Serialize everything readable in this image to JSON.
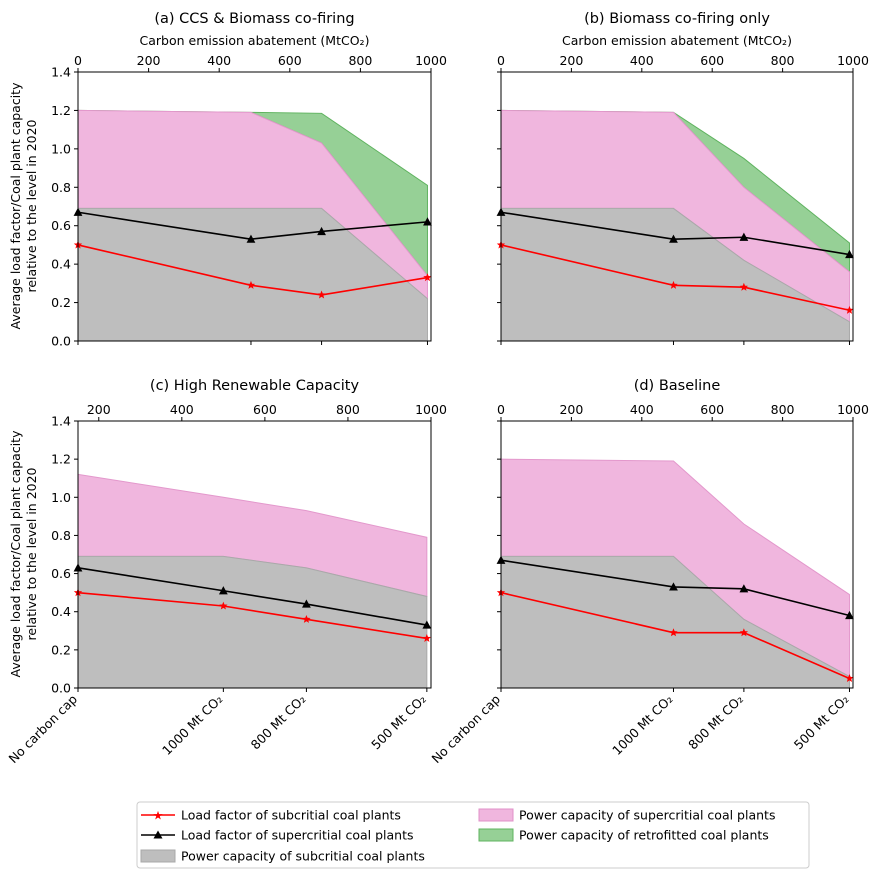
{
  "figure": {
    "shared_ylabel_line1": "Average load factor/Coal plant capacity",
    "shared_ylabel_line2": "relative to the level in 2020",
    "scenario_tick_labels": [
      "No carbon cap",
      "1000 Mt CO₂",
      "800 Mt CO₂",
      "500 Mt CO₂"
    ]
  },
  "colors": {
    "subcritical_load": "#ff0000",
    "supercritical_load": "#000000",
    "subcritical_capacity": "#bebebe",
    "supercritical_capacity": "#f0b6de",
    "retrofitted_capacity": "#96d096",
    "retrofitted_edge": "#5fb35f"
  },
  "legend": {
    "items": [
      {
        "key": "subcritical_load",
        "label": "Load factor of subcritial coal plants"
      },
      {
        "key": "supercritical_load",
        "label": "Load factor of supercritial coal plants"
      },
      {
        "key": "subcritical_capacity",
        "label": "Power capacity of subcritial coal plants"
      },
      {
        "key": "supercritical_capacity",
        "label": "Power capacity of supercritial coal plants"
      },
      {
        "key": "retrofitted_capacity",
        "label": "Power capacity of retrofitted coal plants"
      }
    ]
  },
  "chart_data": [
    {
      "type": "area",
      "title": "(a) CCS & Biomass co-firing",
      "top_xlabel": "Carbon emission abatement (MtCO₂)",
      "top_xlim": [
        0,
        1000
      ],
      "top_xticks": [
        0,
        200,
        400,
        600,
        800,
        1000
      ],
      "ylim": [
        0,
        1.4
      ],
      "yticks": [
        "0.0",
        "0.2",
        "0.4",
        "0.6",
        "0.8",
        "1.0",
        "1.2",
        "1.4"
      ],
      "x": [
        0,
        490,
        690,
        990
      ],
      "categories": [
        "No carbon cap",
        "1000 Mt CO₂",
        "800 Mt CO₂",
        "500 Mt CO₂"
      ],
      "subcritical_capacity": [
        0.69,
        0.69,
        0.69,
        0.22
      ],
      "supercritical_capacity_top": [
        1.2,
        1.19,
        1.03,
        0.34
      ],
      "retrofitted_capacity_top": [
        1.2,
        1.19,
        1.185,
        0.81
      ],
      "series": [
        {
          "name": "Load factor of subcritial coal plants",
          "values": [
            0.5,
            0.29,
            0.24,
            0.33
          ]
        },
        {
          "name": "Load factor of supercritial coal plants",
          "values": [
            0.67,
            0.53,
            0.57,
            0.62
          ]
        }
      ]
    },
    {
      "type": "area",
      "title": "(b) Biomass co-firing only",
      "top_xlabel": "Carbon emission abatement (MtCO₂)",
      "top_xlim": [
        0,
        1000
      ],
      "top_xticks": [
        0,
        200,
        400,
        600,
        800,
        1000
      ],
      "ylim": [
        0,
        1.4
      ],
      "yticks": [
        "0.0",
        "0.2",
        "0.4",
        "0.6",
        "0.8",
        "1.0",
        "1.2",
        "1.4"
      ],
      "x": [
        0,
        490,
        690,
        990
      ],
      "categories": [
        "No carbon cap",
        "1000 Mt CO₂",
        "800 Mt CO₂",
        "500 Mt CO₂"
      ],
      "subcritical_capacity": [
        0.69,
        0.69,
        0.42,
        0.1
      ],
      "supercritical_capacity_top": [
        1.2,
        1.19,
        0.8,
        0.36
      ],
      "retrofitted_capacity_top": [
        1.2,
        1.19,
        0.95,
        0.51
      ],
      "series": [
        {
          "name": "Load factor of subcritial coal plants",
          "values": [
            0.5,
            0.29,
            0.28,
            0.16
          ]
        },
        {
          "name": "Load factor of supercritial coal plants",
          "values": [
            0.67,
            0.53,
            0.54,
            0.45
          ]
        }
      ]
    },
    {
      "type": "area",
      "title": "(c) High Renewable Capacity",
      "top_xlabel": "",
      "top_xlim": [
        150,
        1000
      ],
      "top_xticks": [
        200,
        400,
        600,
        800,
        1000
      ],
      "ylim": [
        0,
        1.4
      ],
      "yticks": [
        "0.0",
        "0.2",
        "0.4",
        "0.6",
        "0.8",
        "1.0",
        "1.2",
        "1.4"
      ],
      "x": [
        150,
        500,
        700,
        990
      ],
      "categories": [
        "No carbon cap",
        "1000 Mt CO₂",
        "800 Mt CO₂",
        "500 Mt CO₂"
      ],
      "subcritical_capacity": [
        0.69,
        0.69,
        0.63,
        0.48
      ],
      "supercritical_capacity_top": [
        1.12,
        1.0,
        0.93,
        0.79
      ],
      "retrofitted_capacity_top": null,
      "series": [
        {
          "name": "Load factor of subcritial coal plants",
          "values": [
            0.5,
            0.43,
            0.36,
            0.26
          ]
        },
        {
          "name": "Load factor of supercritial coal plants",
          "values": [
            0.63,
            0.51,
            0.44,
            0.33
          ]
        }
      ]
    },
    {
      "type": "area",
      "title": "(d) Baseline",
      "top_xlabel": "",
      "top_xlim": [
        0,
        1000
      ],
      "top_xticks": [
        0,
        200,
        400,
        600,
        800,
        1000
      ],
      "ylim": [
        0,
        1.4
      ],
      "yticks": [
        "0.0",
        "0.2",
        "0.4",
        "0.6",
        "0.8",
        "1.0",
        "1.2",
        "1.4"
      ],
      "x": [
        0,
        490,
        690,
        990
      ],
      "categories": [
        "No carbon cap",
        "1000 Mt CO₂",
        "800 Mt CO₂",
        "500 Mt CO₂"
      ],
      "subcritical_capacity": [
        0.69,
        0.69,
        0.36,
        0.06
      ],
      "supercritical_capacity_top": [
        1.2,
        1.19,
        0.86,
        0.49
      ],
      "retrofitted_capacity_top": null,
      "series": [
        {
          "name": "Load factor of subcritial coal plants",
          "values": [
            0.5,
            0.29,
            0.29,
            0.05
          ]
        },
        {
          "name": "Load factor of supercritial coal plants",
          "values": [
            0.67,
            0.53,
            0.52,
            0.38
          ]
        }
      ]
    }
  ]
}
